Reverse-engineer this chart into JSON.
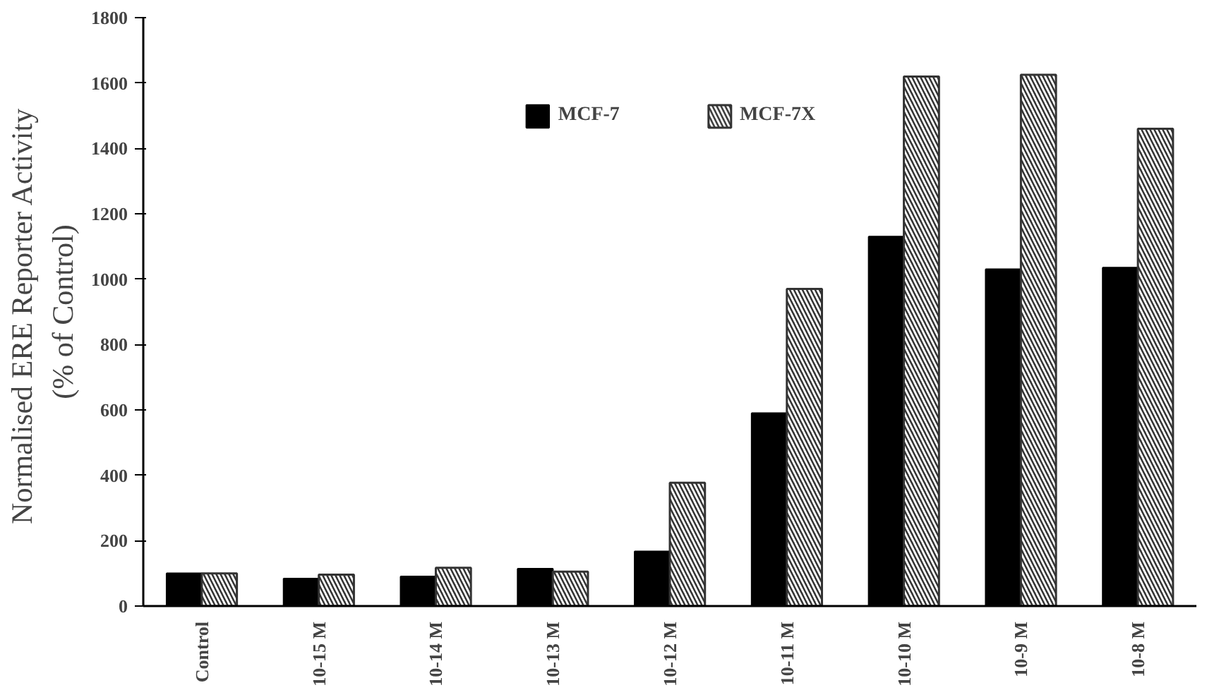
{
  "chart_data": {
    "type": "bar",
    "ylabel": "Normalised ERE  Reporter Activity\n(% of Control)",
    "categories": [
      "Control",
      "10-15 M",
      "10-14 M",
      "10-13 M",
      "10-12 M",
      "10-11 M",
      "10-10 M",
      "10-9 M",
      "10-8 M"
    ],
    "series": [
      {
        "name": "MCF-7",
        "color": "#000000",
        "values": [
          100,
          84,
          90,
          114,
          167,
          590,
          1130,
          1030,
          1035
        ]
      },
      {
        "name": "MCF-7X",
        "color": "#333333",
        "values": [
          100,
          96,
          117,
          105,
          377,
          970,
          1620,
          1625,
          1460
        ]
      }
    ],
    "ylim": [
      0,
      1800
    ],
    "yticks": [
      0,
      200,
      400,
      600,
      800,
      1000,
      1200,
      1400,
      1600,
      1800
    ],
    "grid": false,
    "legend": "top"
  }
}
